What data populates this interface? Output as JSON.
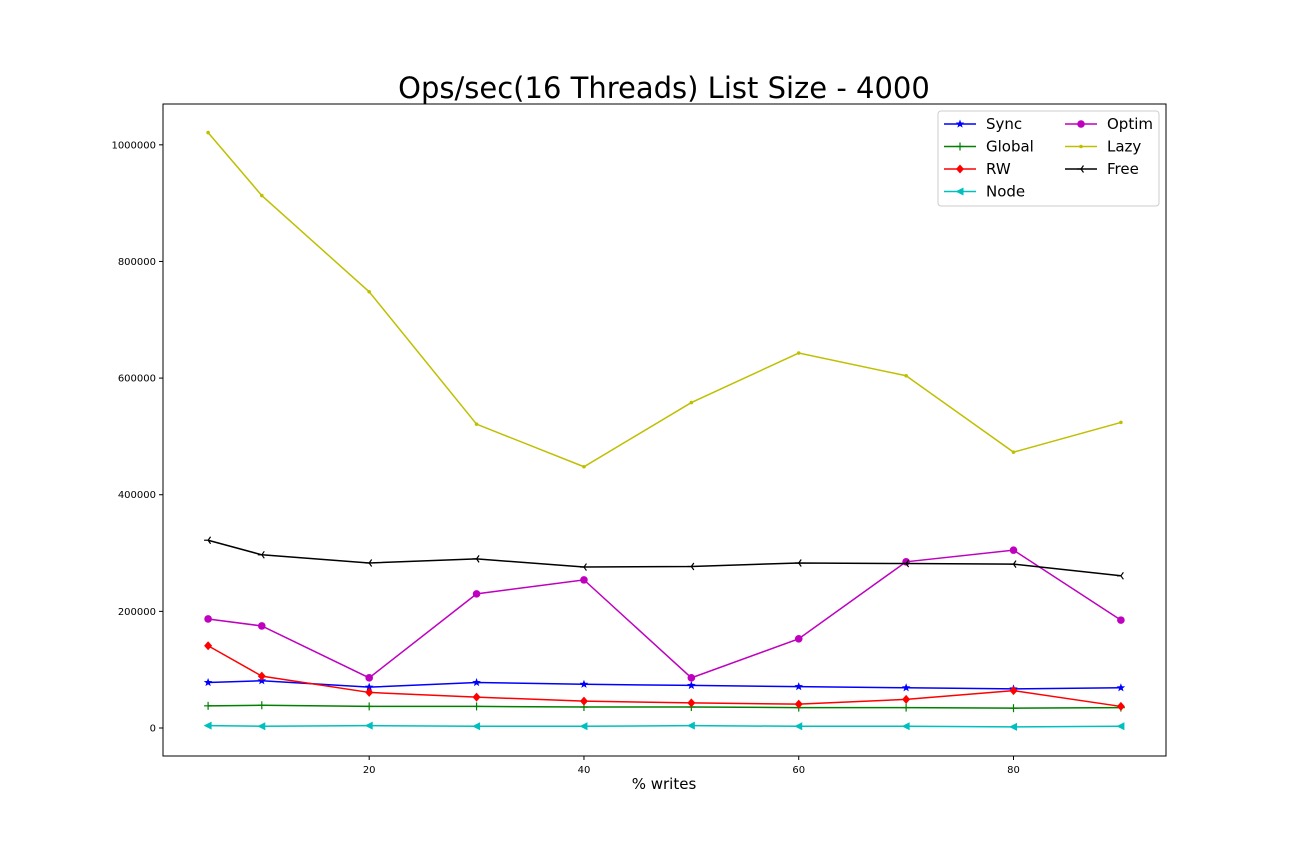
{
  "chart_data": {
    "type": "line",
    "title": "Ops/sec(16 Threads) List Size - 4000",
    "xlabel": "% writes",
    "ylabel": "",
    "x": [
      5,
      10,
      20,
      30,
      40,
      50,
      60,
      70,
      80,
      90
    ],
    "xlim": [
      0.8,
      94.2
    ],
    "ylim": [
      -48000,
      1070000
    ],
    "xticks": [
      20,
      40,
      60,
      80
    ],
    "yticks": [
      0,
      200000,
      400000,
      600000,
      800000,
      1000000
    ],
    "xtick_labels": [
      "20",
      "40",
      "60",
      "80"
    ],
    "ytick_labels": [
      "0",
      "200000",
      "400000",
      "600000",
      "800000",
      "1000000"
    ],
    "grid": false,
    "legend": {
      "placement": "top-right",
      "columns": 2
    },
    "series": [
      {
        "name": "Sync",
        "color": "#0000ff",
        "marker": "star",
        "values": [
          78000,
          81000,
          70000,
          78000,
          75000,
          73000,
          71000,
          69000,
          67000,
          69000
        ]
      },
      {
        "name": "Global",
        "color": "#008000",
        "marker": "plus",
        "values": [
          38000,
          39000,
          37000,
          37000,
          36000,
          36000,
          35000,
          35000,
          34000,
          35000
        ]
      },
      {
        "name": "RW",
        "color": "#ff0000",
        "marker": "diamond",
        "values": [
          141000,
          89000,
          61000,
          53000,
          46000,
          43000,
          41000,
          49000,
          64000,
          37000
        ]
      },
      {
        "name": "Node",
        "color": "#00bfbf",
        "marker": "triangle-left",
        "values": [
          4000,
          3000,
          4000,
          3000,
          3000,
          4000,
          3000,
          3000,
          2000,
          3000
        ]
      },
      {
        "name": "Optim",
        "color": "#bf00bf",
        "marker": "circle",
        "values": [
          187000,
          175000,
          86000,
          230000,
          254000,
          86000,
          153000,
          285000,
          305000,
          185000
        ]
      },
      {
        "name": "Lazy",
        "color": "#bfbf00",
        "marker": "point",
        "values": [
          1021000,
          913000,
          748000,
          521000,
          448000,
          558000,
          643000,
          604000,
          473000,
          524000
        ]
      },
      {
        "name": "Free",
        "color": "#000000",
        "marker": "tri-left",
        "values": [
          322000,
          297000,
          283000,
          290000,
          276000,
          277000,
          283000,
          282000,
          281000,
          261000
        ]
      }
    ]
  }
}
